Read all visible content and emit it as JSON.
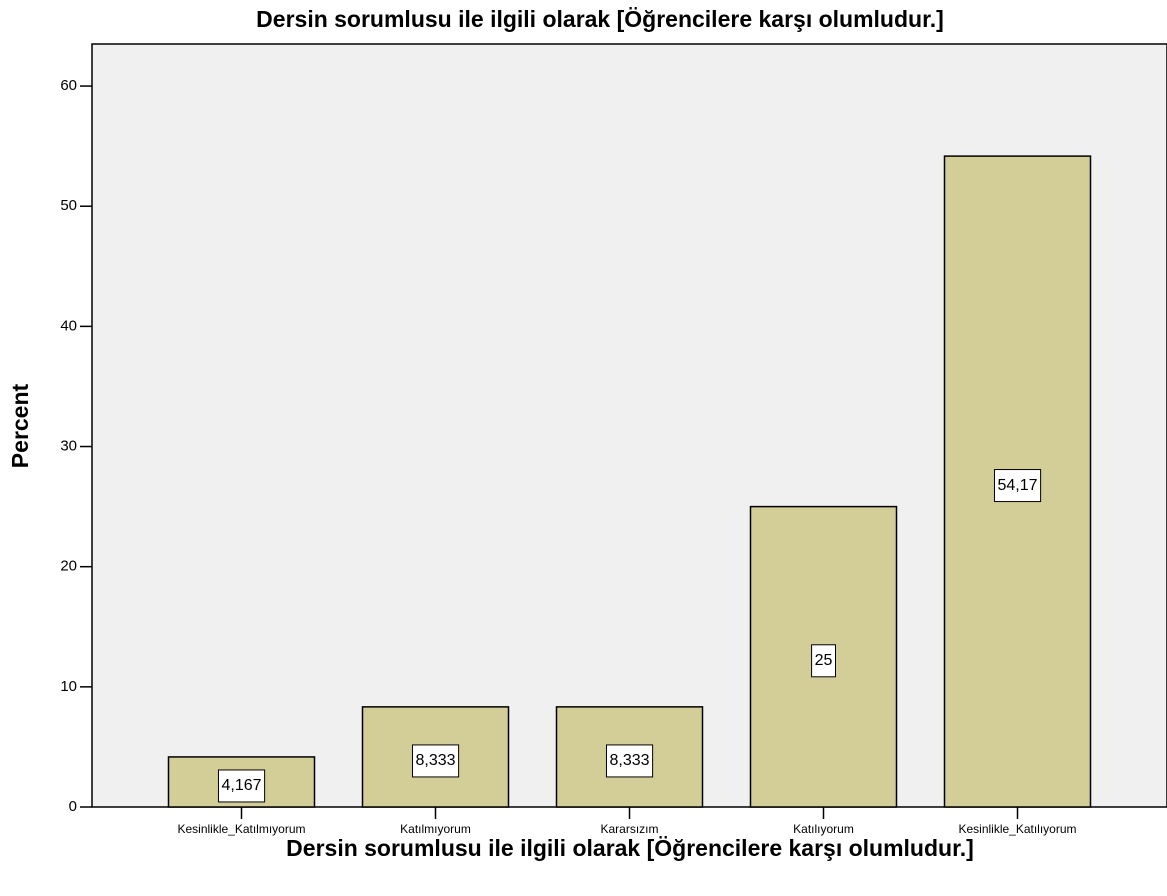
{
  "chart_data": {
    "type": "bar",
    "title": "Dersin sorumlusu ile ilgili olarak  [Öğrencilere karşı olumludur.]",
    "xlabel": "Dersin sorumlusu ile ilgili olarak  [Öğrencilere karşı olumludur.]",
    "ylabel": "Percent",
    "categories": [
      "Kesinlikle_Katılmıyorum",
      "Katılmıyorum",
      "Kararsızım",
      "Katılıyorum",
      "Kesinlikle_Katılıyorum"
    ],
    "values": [
      4.167,
      8.333,
      8.333,
      25,
      54.17
    ],
    "value_labels": [
      "4,167",
      "8,333",
      "8,333",
      "25",
      "54,17"
    ],
    "color": "#d3ce97",
    "ylim": [
      0,
      63.5
    ],
    "yticks": [
      0,
      10,
      20,
      30,
      40,
      50,
      60
    ],
    "grid": false
  }
}
